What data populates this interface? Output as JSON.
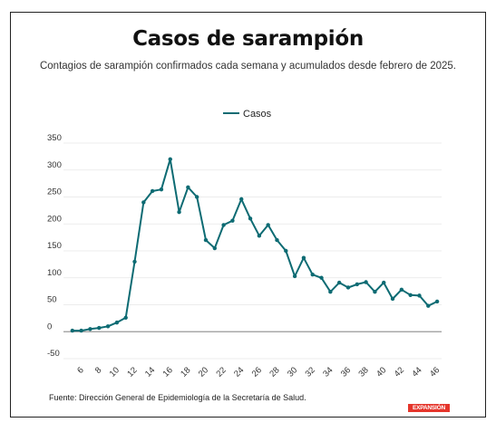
{
  "title": "Casos de sarampión",
  "subtitle": "Contagios de sarampión confirmados cada semana y acumulados desde febrero de 2025.",
  "source": "Fuente: Dirección General de Epidemiología de la Secretaría de Salud.",
  "logo_text": "EXPANSIÓN",
  "colors": {
    "line": "#0d6b73",
    "grid": "#e6e6e6",
    "zero_line": "#999999",
    "logo": "#e5352b"
  },
  "chart_data": {
    "type": "line",
    "legend": {
      "entries": [
        "Casos"
      ],
      "position": "top-center"
    },
    "grid": true,
    "ylim": [
      -50,
      350
    ],
    "yticks": [
      -50,
      0,
      50,
      100,
      150,
      200,
      250,
      300,
      350
    ],
    "xticks": [
      6,
      8,
      10,
      12,
      14,
      16,
      18,
      20,
      22,
      24,
      26,
      28,
      30,
      32,
      34,
      36,
      38,
      40,
      42,
      44,
      46
    ],
    "series": [
      {
        "name": "Casos",
        "x": [
          5,
          6,
          7,
          8,
          9,
          10,
          11,
          12,
          13,
          14,
          15,
          16,
          17,
          18,
          19,
          20,
          21,
          22,
          23,
          24,
          25,
          26,
          27,
          28,
          29,
          30,
          31,
          32,
          33,
          34,
          35,
          36,
          37,
          38,
          39,
          40,
          41,
          42,
          43,
          44,
          45,
          46
        ],
        "values": [
          2,
          2,
          5,
          7,
          10,
          17,
          26,
          130,
          240,
          261,
          264,
          320,
          222,
          268,
          250,
          170,
          155,
          198,
          206,
          246,
          210,
          178,
          198,
          170,
          150,
          103,
          137,
          106,
          100,
          74,
          91,
          82,
          88,
          92,
          74,
          91,
          61,
          78,
          68,
          67,
          48,
          56
        ]
      }
    ]
  }
}
